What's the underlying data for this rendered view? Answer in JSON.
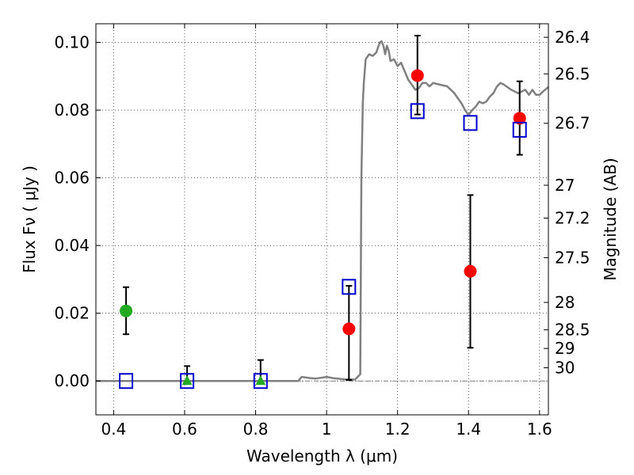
{
  "chart_data": {
    "type": "scatter",
    "title": "",
    "xlabel": "Wavelength  λ (μm)",
    "ylabel": "Flux  Fν  ( μJy )",
    "y2label": "Magnitude (AB)",
    "xlim": [
      0.35,
      1.625
    ],
    "ylim": [
      -0.01,
      0.1055
    ],
    "grid": true,
    "x_ticks": [
      0.4,
      0.6,
      0.8,
      1.0,
      1.2,
      1.4,
      1.6
    ],
    "x_tick_labels": [
      "0.4",
      "0.6",
      "0.8",
      "1",
      "1.2",
      "1.4",
      "1.6"
    ],
    "y_ticks": [
      0.0,
      0.02,
      0.04,
      0.06,
      0.08,
      0.1
    ],
    "y_tick_labels": [
      "0.00",
      "0.02",
      "0.04",
      "0.06",
      "0.08",
      "0.10"
    ],
    "y2_ticks": [
      {
        "label": "26.4",
        "flux": 0.1015
      },
      {
        "label": "26.5",
        "flux": 0.0907
      },
      {
        "label": "26.7",
        "flux": 0.0761
      },
      {
        "label": "27",
        "flux": 0.0578
      },
      {
        "label": "27.2",
        "flux": 0.0481
      },
      {
        "label": "27.5",
        "flux": 0.0364
      },
      {
        "label": "28",
        "flux": 0.0232
      },
      {
        "label": "28.5",
        "flux": 0.0151
      },
      {
        "label": "29",
        "flux": 0.0096
      },
      {
        "label": "30",
        "flux": 0.0039
      }
    ],
    "model_spectrum": {
      "color": "#808080",
      "x": [
        0.35,
        0.92,
        0.93,
        0.95,
        0.97,
        1.0,
        1.02,
        1.05,
        1.08,
        1.095,
        1.098,
        1.102,
        1.105,
        1.11,
        1.12,
        1.13,
        1.14,
        1.15,
        1.155,
        1.16,
        1.165,
        1.17,
        1.175,
        1.18,
        1.19,
        1.2,
        1.21,
        1.22,
        1.23,
        1.24,
        1.25,
        1.26,
        1.27,
        1.28,
        1.29,
        1.3,
        1.32,
        1.34,
        1.36,
        1.37,
        1.38,
        1.39,
        1.4,
        1.41,
        1.42,
        1.43,
        1.44,
        1.45,
        1.46,
        1.47,
        1.48,
        1.49,
        1.5,
        1.52,
        1.54,
        1.56,
        1.57,
        1.58,
        1.59,
        1.6,
        1.61,
        1.625
      ],
      "y": [
        0.0,
        0.0,
        0.0012,
        0.0009,
        0.0007,
        0.0012,
        0.0008,
        0.0005,
        0.0004,
        0.002,
        0.06,
        0.082,
        0.088,
        0.095,
        0.0965,
        0.096,
        0.097,
        0.1,
        0.1003,
        0.099,
        0.0965,
        0.099,
        0.0975,
        0.0945,
        0.095,
        0.093,
        0.094,
        0.0915,
        0.089,
        0.0875,
        0.086,
        0.0865,
        0.088,
        0.088,
        0.087,
        0.088,
        0.0875,
        0.087,
        0.085,
        0.0835,
        0.082,
        0.08,
        0.0785,
        0.08,
        0.081,
        0.0825,
        0.082,
        0.0825,
        0.084,
        0.085,
        0.087,
        0.088,
        0.0875,
        0.086,
        0.085,
        0.086,
        0.0845,
        0.086,
        0.0845,
        0.0845,
        0.0855,
        0.0868
      ]
    },
    "series": [
      {
        "marker": "circle",
        "color": "#22aa22",
        "points": [
          {
            "x": 0.435,
            "y": 0.0207,
            "err_low": 0.0138,
            "err_high": 0.0277
          }
        ]
      },
      {
        "marker": "triangle",
        "color": "#22aa22",
        "points": [
          {
            "x": 0.607,
            "y": 0.0,
            "err_low": 0.0,
            "err_high": 0.0044
          },
          {
            "x": 0.814,
            "y": 0.0,
            "err_low": 0.0,
            "err_high": 0.0062
          }
        ]
      },
      {
        "marker": "circle",
        "color": "#ff0000",
        "points": [
          {
            "x": 1.063,
            "y": 0.0154,
            "err_low": 0.0003,
            "err_high": 0.0281
          },
          {
            "x": 1.256,
            "y": 0.0902,
            "err_low": 0.0787,
            "err_high": 0.102
          },
          {
            "x": 1.405,
            "y": 0.0324,
            "err_low": 0.0098,
            "err_high": 0.0549
          },
          {
            "x": 1.544,
            "y": 0.0776,
            "err_low": 0.0668,
            "err_high": 0.0885
          }
        ]
      },
      {
        "marker": "square-open",
        "color": "#0000cc",
        "points": [
          {
            "x": 0.435,
            "y": 0.0
          },
          {
            "x": 0.607,
            "y": 0.0
          },
          {
            "x": 0.814,
            "y": 0.0
          },
          {
            "x": 1.063,
            "y": 0.0278
          },
          {
            "x": 1.256,
            "y": 0.0797
          },
          {
            "x": 1.405,
            "y": 0.0762
          },
          {
            "x": 1.544,
            "y": 0.0742
          }
        ]
      }
    ]
  }
}
